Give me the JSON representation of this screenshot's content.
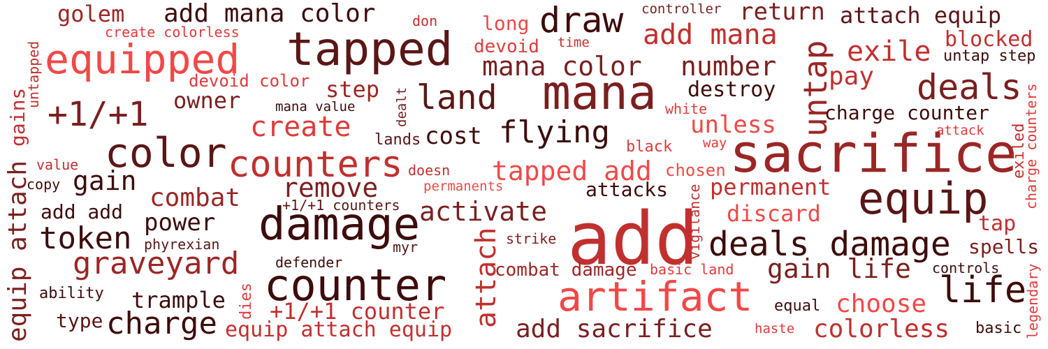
{
  "palette": {
    "darkest": "#3d0c0c",
    "dark": "#5a1616",
    "deep": "#7a1f1f",
    "mid": "#9b2626",
    "red": "#c0302f",
    "bright": "#e03a3a",
    "light": "#f04848"
  },
  "words": [
    "golem",
    "add mana color",
    "create colorless",
    "don",
    "tapped",
    "draw",
    "controller",
    "return",
    "attach equip",
    "long",
    "devoid",
    "time",
    "add mana",
    "blocked",
    "equipped",
    "exile",
    "untap step",
    "untapped",
    "devoid color",
    "mana color",
    "number",
    "pay",
    "deals",
    "mana",
    "step",
    "owner",
    "dealt",
    "land",
    "destroy",
    "+1/+1",
    "mana value",
    "white",
    "charge counter",
    "gains",
    "create",
    "unless",
    "flying",
    "attack",
    "color",
    "cost",
    "lands",
    "black",
    "way",
    "sacrifice",
    "counters",
    "exiled",
    "value",
    "doesn",
    "tapped add",
    "chosen",
    "charge counters",
    "gain",
    "copy",
    "permanents",
    "remove",
    "permanent",
    "attacks",
    "combat",
    "equip",
    "add add",
    "+1/+1 counters",
    "activate",
    "discard",
    "power",
    "damage",
    "tap",
    "token",
    "phyrexian",
    "myr",
    "add",
    "deals damage",
    "spells",
    "strike",
    "equip attach",
    "graveyard",
    "vigilance",
    "defender",
    "gain life",
    "combat damage",
    "basic land",
    "controls",
    "counter",
    "ability",
    "artifact",
    "life",
    "dies",
    "trample",
    "+1/+1 counter",
    "equal",
    "choose",
    "type",
    "charge",
    "equip attach equip",
    "add sacrifice",
    "haste",
    "colorless",
    "basic",
    "legendary",
    "attach",
    "untap"
  ]
}
